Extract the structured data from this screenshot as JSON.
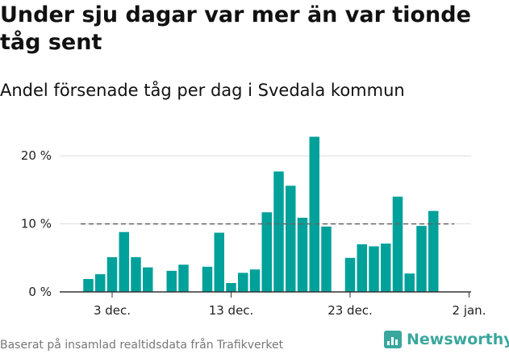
{
  "header": {
    "title": "Under sju dagar var mer än var tionde tåg sent",
    "subtitle": "Andel försenade tåg per dag i Svedala kommun"
  },
  "footer": {
    "source": "Baserat på insamlad realtidsdata från Trafikverket",
    "brand": "Newsworthy",
    "brand_icon": "bar-chart-logo-icon"
  },
  "colors": {
    "bar": "#00a19a",
    "reference_line": "#666666",
    "grid": "#dddddd"
  },
  "chart_data": {
    "type": "bar",
    "title": "Under sju dagar var mer än var tionde tåg sent",
    "subtitle": "Andel försenade tåg per dag i Svedala kommun",
    "xlabel": "",
    "ylabel": "",
    "x_ticks": [
      "3 dec.",
      "13 dec.",
      "23 dec.",
      "2 jan."
    ],
    "y_ticks": [
      "0 %",
      "10 %",
      "20 %"
    ],
    "ylim": [
      0,
      22
    ],
    "reference_line": 10,
    "grid": true,
    "categories": [
      "1 dec.",
      "2 dec.",
      "3 dec.",
      "4 dec.",
      "5 dec.",
      "6 dec.",
      "7 dec.",
      "8 dec.",
      "9 dec.",
      "10 dec.",
      "11 dec.",
      "12 dec.",
      "13 dec.",
      "14 dec.",
      "15 dec.",
      "16 dec.",
      "17 dec.",
      "18 dec.",
      "19 dec.",
      "20 dec.",
      "21 dec.",
      "22 dec.",
      "23 dec.",
      "24 dec.",
      "25 dec.",
      "26 dec.",
      "27 dec.",
      "28 dec.",
      "29 dec.",
      "30 dec."
    ],
    "values": [
      1.9,
      2.6,
      5.1,
      8.8,
      5.1,
      3.6,
      null,
      3.1,
      4.0,
      null,
      3.7,
      8.7,
      1.3,
      2.8,
      3.3,
      11.7,
      17.7,
      15.6,
      10.9,
      22.8,
      9.6,
      null,
      5.0,
      7.0,
      6.7,
      7.1,
      14.0,
      2.7,
      9.7,
      11.9
    ]
  }
}
